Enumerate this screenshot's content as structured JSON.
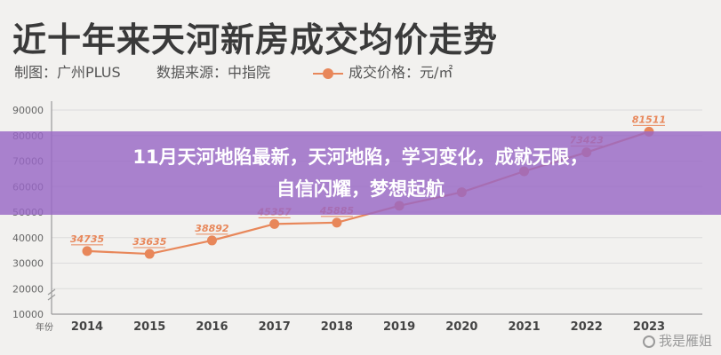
{
  "header": {
    "title": "近十年来天河新房成交均价走势",
    "maker": "制图：广州PLUS",
    "source": "数据来源：中指院",
    "legend": "成交价格：元/㎡"
  },
  "banner": {
    "line1": "11月天河地陷最新，天河地陷，学习变化，成就无限，",
    "line2": "自信闪耀，梦想起航"
  },
  "watermark": "我是雁姐",
  "colors": {
    "line": "#e8875a",
    "banner": "#9868c6",
    "axis": "#9a9a9a"
  },
  "chart_data": {
    "type": "line",
    "x_axis_label": "年份",
    "categories": [
      "2014",
      "2015",
      "2016",
      "2017",
      "2018",
      "2019",
      "2020",
      "2021",
      "2022",
      "2023"
    ],
    "series": [
      {
        "name": "成交价格：元/㎡",
        "values": [
          34735,
          33635,
          38892,
          45357,
          45885,
          52500,
          57800,
          66000,
          73423,
          81511
        ],
        "labels": [
          "34735",
          "33635",
          "38892",
          "45357",
          "45885",
          "",
          "",
          "",
          "73423",
          "81511"
        ]
      }
    ],
    "y_ticks": [
      "10000",
      "20000",
      "30000",
      "40000",
      "50000",
      "60000",
      "70000",
      "80000",
      "90000"
    ],
    "ylim": [
      10000,
      90000
    ],
    "grid": true
  }
}
